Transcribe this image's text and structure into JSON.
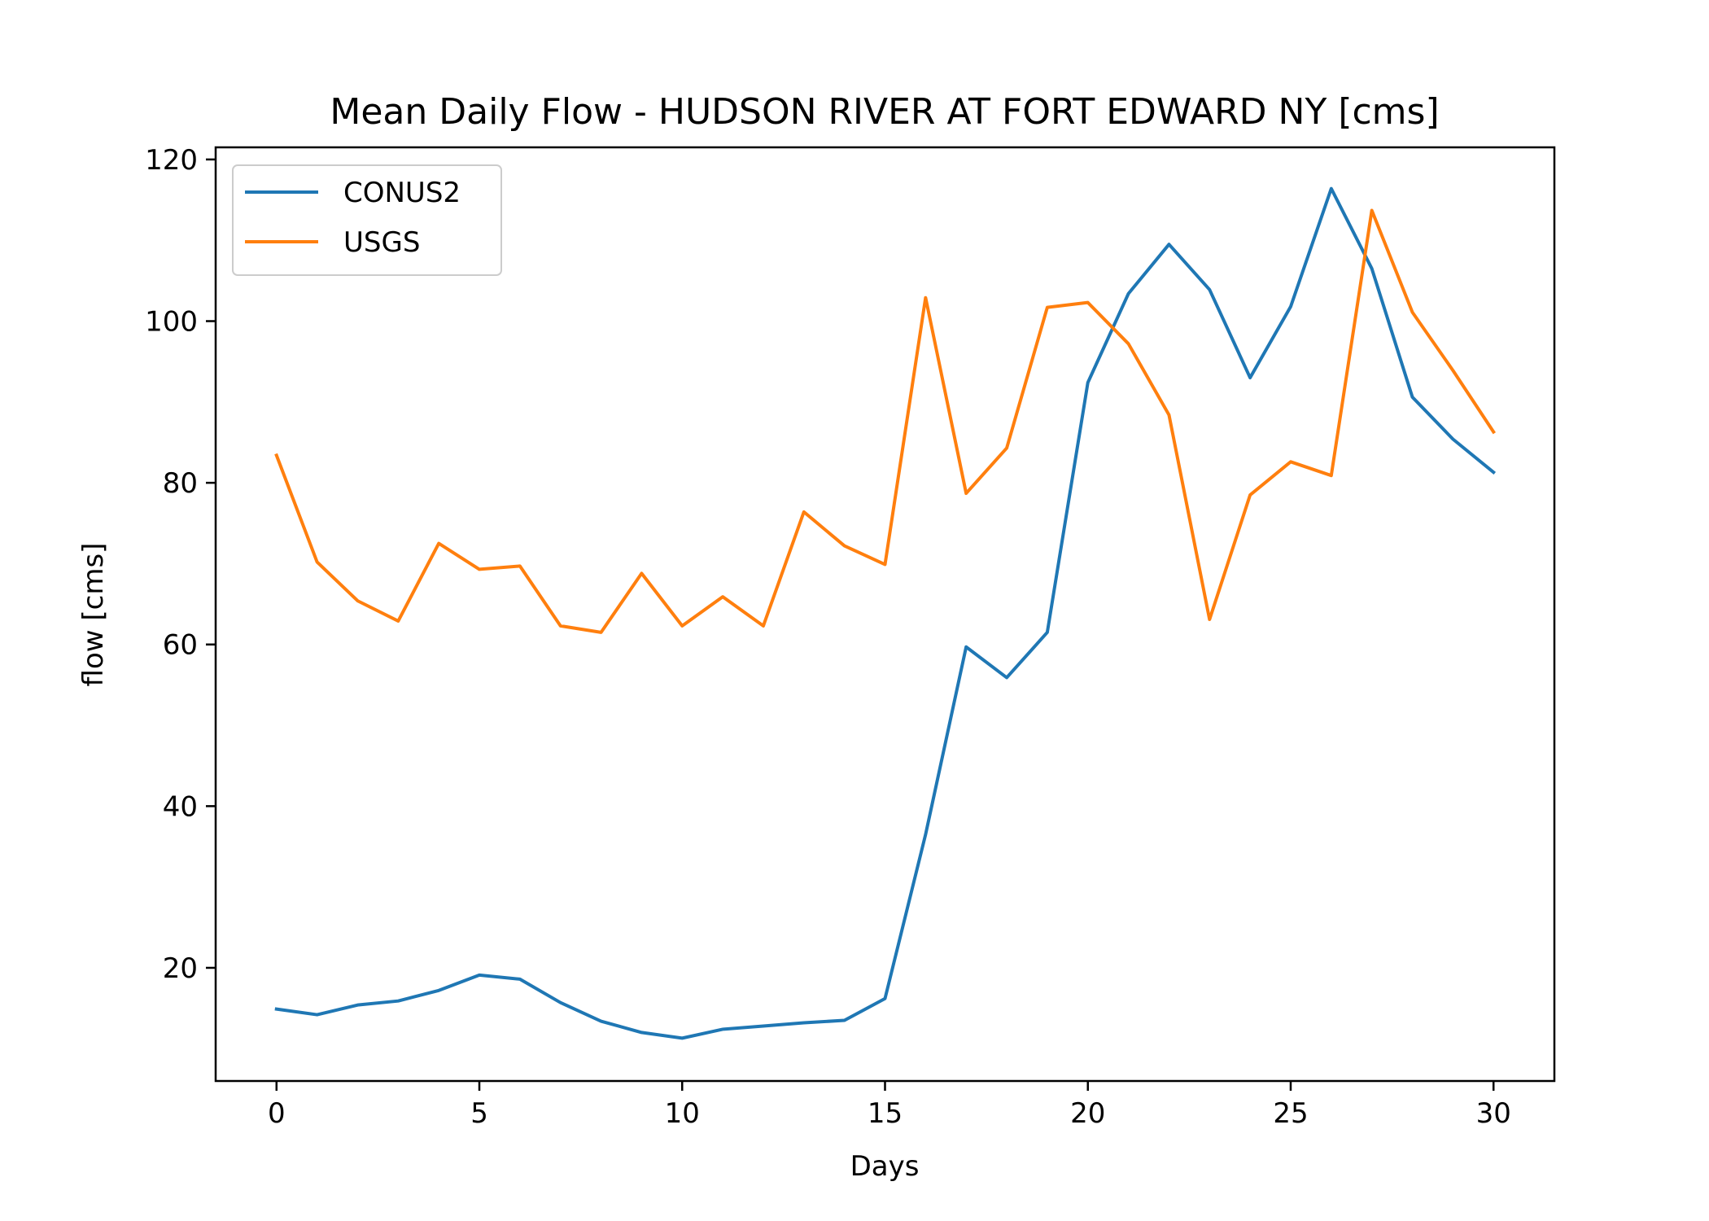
{
  "chart_data": {
    "type": "line",
    "title": "Mean Daily Flow - HUDSON RIVER AT FORT EDWARD NY [cms]",
    "xlabel": "Days",
    "ylabel": "flow [cms]",
    "xlim": [
      -1.5,
      31.5
    ],
    "ylim": [
      6.0,
      121.5
    ],
    "xticks": [
      0,
      5,
      10,
      15,
      20,
      25,
      30
    ],
    "yticks": [
      20,
      40,
      60,
      80,
      100,
      120
    ],
    "legend_position": "upper-left",
    "x": [
      0,
      1,
      2,
      3,
      4,
      5,
      6,
      7,
      8,
      9,
      10,
      11,
      12,
      13,
      14,
      15,
      16,
      17,
      18,
      19,
      20,
      21,
      22,
      23,
      24,
      25,
      26,
      27,
      28,
      29,
      30
    ],
    "series": [
      {
        "name": "CONUS2",
        "color": "#1f77b4",
        "values": [
          14.9,
          14.2,
          15.4,
          15.9,
          17.2,
          19.1,
          18.6,
          15.7,
          13.4,
          12.0,
          11.3,
          12.4,
          12.8,
          13.2,
          13.5,
          16.2,
          36.5,
          59.7,
          55.9,
          61.5,
          92.4,
          103.4,
          109.5,
          103.9,
          93.0,
          101.8,
          116.4,
          106.5,
          90.6,
          85.4,
          81.3
        ]
      },
      {
        "name": "USGS",
        "color": "#ff7f0e",
        "values": [
          83.4,
          70.2,
          65.4,
          62.9,
          72.5,
          69.3,
          69.7,
          62.3,
          61.5,
          68.8,
          62.3,
          65.9,
          62.3,
          76.4,
          72.2,
          69.9,
          102.9,
          78.7,
          84.3,
          101.7,
          102.3,
          97.2,
          88.4,
          63.1,
          78.5,
          82.6,
          80.9,
          113.7,
          101.1,
          93.9,
          86.3
        ]
      }
    ]
  }
}
